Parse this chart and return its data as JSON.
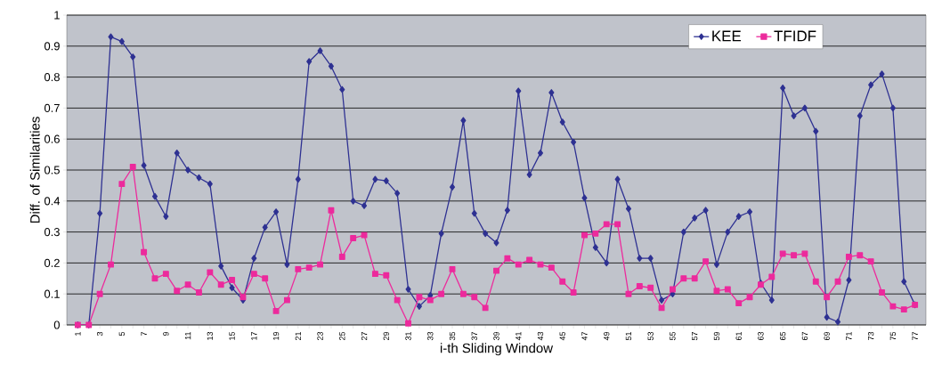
{
  "chart_data": {
    "type": "line",
    "xlabel": "i-th Sliding Window",
    "ylabel": "Diff. of Similarities",
    "categories": [
      "1",
      null,
      "3",
      null,
      "5",
      null,
      "7",
      null,
      "9",
      null,
      "11",
      null,
      "13",
      null,
      "15",
      null,
      "17",
      null,
      "19",
      null,
      "21",
      null,
      "23",
      null,
      "25",
      null,
      "27",
      null,
      "29",
      null,
      "31",
      null,
      "33",
      null,
      "35",
      null,
      "37",
      null,
      "39",
      null,
      "41",
      null,
      "43",
      null,
      "45",
      null,
      "47",
      null,
      "49",
      null,
      "51",
      null,
      "53",
      null,
      "55",
      null,
      "57",
      null,
      "59",
      null,
      "61",
      null,
      "63",
      null,
      "65",
      null,
      "67",
      null,
      "69",
      null,
      "71",
      null,
      "73",
      null,
      "75",
      null,
      "77"
    ],
    "series": [
      {
        "name": "KEE",
        "color": "#2e3192",
        "marker": "diamond",
        "values": [
          0,
          0,
          0.36,
          0.93,
          0.915,
          0.865,
          0.515,
          0.415,
          0.35,
          0.555,
          0.5,
          0.475,
          0.455,
          0.19,
          0.12,
          0.08,
          0.215,
          0.315,
          0.365,
          0.195,
          0.47,
          0.85,
          0.885,
          0.835,
          0.76,
          0.4,
          0.385,
          0.47,
          0.465,
          0.425,
          0.115,
          0.06,
          0.095,
          0.295,
          0.445,
          0.66,
          0.36,
          0.295,
          0.265,
          0.37,
          0.755,
          0.485,
          0.555,
          0.75,
          0.655,
          0.59,
          0.41,
          0.25,
          0.2,
          0.47,
          0.375,
          0.215,
          0.215,
          0.08,
          0.1,
          0.3,
          0.345,
          0.37,
          0.195,
          0.3,
          0.35,
          0.365,
          0.135,
          0.08,
          0.765,
          0.675,
          0.7,
          0.625,
          0.025,
          0.01,
          0.145,
          0.675,
          0.775,
          0.81,
          0.7,
          0.14,
          0.065
        ]
      },
      {
        "name": "TFIDF",
        "color": "#ec2a9c",
        "marker": "square",
        "values": [
          0,
          0,
          0.1,
          0.195,
          0.455,
          0.51,
          0.235,
          0.15,
          0.165,
          0.11,
          0.13,
          0.105,
          0.17,
          0.13,
          0.145,
          0.09,
          0.165,
          0.15,
          0.045,
          0.08,
          0.18,
          0.185,
          0.195,
          0.37,
          0.22,
          0.28,
          0.29,
          0.165,
          0.16,
          0.08,
          0.005,
          0.09,
          0.08,
          0.1,
          0.18,
          0.1,
          0.09,
          0.055,
          0.175,
          0.215,
          0.195,
          0.21,
          0.195,
          0.185,
          0.14,
          0.105,
          0.29,
          0.295,
          0.325,
          0.325,
          0.1,
          0.125,
          0.12,
          0.055,
          0.115,
          0.15,
          0.15,
          0.205,
          0.11,
          0.115,
          0.07,
          0.09,
          0.13,
          0.155,
          0.23,
          0.225,
          0.23,
          0.14,
          0.09,
          0.14,
          0.22,
          0.225,
          0.205,
          0.105,
          0.06,
          0.05,
          0.065
        ]
      }
    ],
    "ylim": [
      0,
      1
    ],
    "yticks": [
      0,
      0.1,
      0.2,
      0.3,
      0.4,
      0.5,
      0.6,
      0.7,
      0.8,
      0.9,
      1
    ],
    "grid": "y",
    "legend": "top right",
    "line_style": "solid"
  }
}
